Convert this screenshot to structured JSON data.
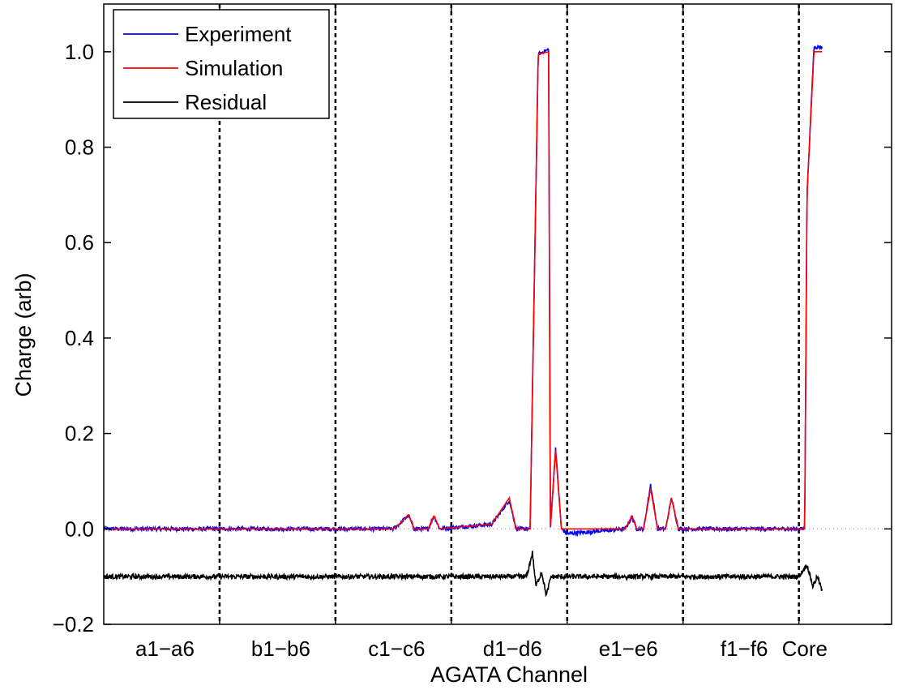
{
  "chart_data": {
    "type": "line",
    "title": "",
    "xlabel": "AGATA Channel",
    "ylabel": "Charge (arb)",
    "ylim": [
      -0.2,
      1.1
    ],
    "yticks": [
      -0.2,
      0.0,
      0.2,
      0.4,
      0.6,
      0.8,
      1.0
    ],
    "ytick_labels": [
      "−0.2",
      "0.0",
      "0.2",
      "0.4",
      "0.6",
      "0.8",
      "1.0"
    ],
    "x_segments": [
      "a1−a6",
      "b1−b6",
      "c1−c6",
      "d1−d6",
      "e1−e6",
      "f1−f6",
      "Core"
    ],
    "x_unit": "channel segment (0-7, each segment is one electrode group)",
    "legend": {
      "placement": "top-left",
      "entries": [
        {
          "name": "Experiment",
          "color": "#0000ff"
        },
        {
          "name": "Simulation",
          "color": "#ff0000"
        },
        {
          "name": "Residual",
          "color": "#000000"
        }
      ]
    },
    "grid": false,
    "baseline_dotted": true,
    "series": [
      {
        "name": "Experiment",
        "color": "#0000ff",
        "noise": 0.004,
        "baseline": 0.0,
        "points": [
          [
            0.0,
            0.0
          ],
          [
            2.5,
            0.0
          ],
          [
            2.55,
            0.01
          ],
          [
            2.63,
            0.028
          ],
          [
            2.68,
            0.0
          ],
          [
            2.8,
            0.0
          ],
          [
            2.85,
            0.027
          ],
          [
            2.9,
            0.0
          ],
          [
            3.35,
            0.01
          ],
          [
            3.5,
            0.06
          ],
          [
            3.56,
            0.0
          ],
          [
            3.68,
            0.0
          ],
          [
            3.75,
            0.995
          ],
          [
            3.84,
            1.005
          ],
          [
            3.855,
            0.0
          ],
          [
            3.9,
            0.17
          ],
          [
            3.95,
            0.0
          ],
          [
            4.0,
            -0.01
          ],
          [
            4.5,
            0.0
          ],
          [
            4.56,
            0.025
          ],
          [
            4.6,
            0.0
          ],
          [
            4.66,
            0.0
          ],
          [
            4.72,
            0.093
          ],
          [
            4.78,
            0.0
          ],
          [
            4.85,
            0.0
          ],
          [
            4.9,
            0.065
          ],
          [
            4.96,
            0.0
          ],
          [
            6.0,
            0.0
          ],
          [
            6.05,
            0.0
          ],
          [
            6.07,
            0.7
          ],
          [
            6.13,
            1.01
          ],
          [
            6.2,
            1.01
          ]
        ]
      },
      {
        "name": "Simulation",
        "color": "#ff0000",
        "noise": 0.0,
        "baseline": 0.0,
        "points": [
          [
            0.0,
            0.0
          ],
          [
            2.5,
            0.0
          ],
          [
            2.55,
            0.01
          ],
          [
            2.63,
            0.03
          ],
          [
            2.68,
            0.0
          ],
          [
            2.8,
            0.0
          ],
          [
            2.85,
            0.028
          ],
          [
            2.9,
            0.0
          ],
          [
            3.35,
            0.01
          ],
          [
            3.5,
            0.065
          ],
          [
            3.56,
            0.0
          ],
          [
            3.68,
            0.0
          ],
          [
            3.75,
            0.995
          ],
          [
            3.84,
            1.0
          ],
          [
            3.855,
            0.0
          ],
          [
            3.9,
            0.165
          ],
          [
            3.95,
            0.0
          ],
          [
            4.5,
            0.0
          ],
          [
            4.56,
            0.027
          ],
          [
            4.6,
            0.0
          ],
          [
            4.66,
            0.0
          ],
          [
            4.72,
            0.085
          ],
          [
            4.78,
            0.0
          ],
          [
            4.85,
            0.0
          ],
          [
            4.9,
            0.065
          ],
          [
            4.96,
            0.0
          ],
          [
            6.0,
            0.0
          ],
          [
            6.05,
            0.0
          ],
          [
            6.07,
            0.7
          ],
          [
            6.13,
            1.0
          ],
          [
            6.2,
            1.0
          ]
        ]
      },
      {
        "name": "Residual",
        "color": "#000000",
        "noise": 0.005,
        "baseline": -0.1,
        "points": [
          [
            0.0,
            -0.1
          ],
          [
            3.65,
            -0.1
          ],
          [
            3.7,
            -0.05
          ],
          [
            3.73,
            -0.12
          ],
          [
            3.78,
            -0.09
          ],
          [
            3.82,
            -0.14
          ],
          [
            3.86,
            -0.1
          ],
          [
            6.0,
            -0.1
          ],
          [
            6.07,
            -0.075
          ],
          [
            6.12,
            -0.12
          ],
          [
            6.16,
            -0.1
          ],
          [
            6.2,
            -0.13
          ]
        ]
      }
    ]
  }
}
